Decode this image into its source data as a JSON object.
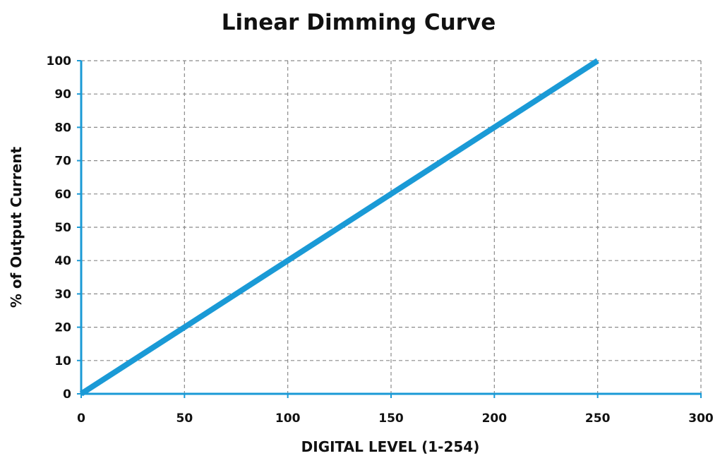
{
  "chart_data": {
    "type": "line",
    "title": "Linear Dimming Curve",
    "xlabel": "DIGITAL LEVEL (1-254)",
    "ylabel": "% of Output Current",
    "xlim": [
      0,
      300
    ],
    "ylim": [
      0,
      100
    ],
    "x_ticks": [
      0,
      50,
      100,
      150,
      200,
      250,
      300
    ],
    "y_ticks": [
      0,
      10,
      20,
      30,
      40,
      50,
      60,
      70,
      80,
      90,
      100
    ],
    "x_tick_labels": [
      "0",
      "50",
      "100",
      "150",
      "200",
      "250",
      "300"
    ],
    "y_tick_labels": [
      "0",
      "10",
      "20",
      "30",
      "40",
      "50",
      "60",
      "70",
      "80",
      "90",
      "100"
    ],
    "grid": true,
    "legend": "none",
    "series": [
      {
        "x": [
          0,
          250
        ],
        "y": [
          0,
          100
        ],
        "color": "#1a9ad6"
      }
    ],
    "colors": {
      "axis": "#1a9ad6",
      "grid": "#8a8a8a",
      "text": "#111111"
    }
  }
}
